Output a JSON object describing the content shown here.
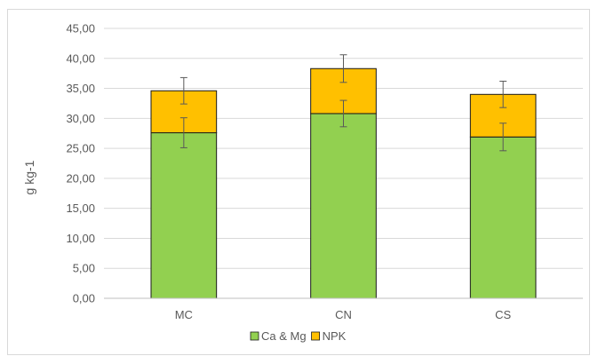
{
  "chart_data": {
    "type": "bar",
    "stacked": true,
    "categories": [
      "MC",
      "CN",
      "CS"
    ],
    "series": [
      {
        "name": "Ca & Mg",
        "values": [
          27.6,
          30.8,
          26.9
        ],
        "error": [
          2.5,
          2.2,
          2.3
        ],
        "color": "#92d050"
      },
      {
        "name": "NPK",
        "values": [
          7.0,
          7.5,
          7.1
        ],
        "error": [
          2.2,
          2.3,
          2.2
        ],
        "color": "#ffc000"
      }
    ],
    "ylabel": "g kg-1",
    "ylim": [
      0,
      45
    ],
    "yticks": [
      "0,00",
      "5,00",
      "10,00",
      "15,00",
      "20,00",
      "25,00",
      "30,00",
      "35,00",
      "40,00",
      "45,00"
    ],
    "grid": true,
    "legend": "bottom"
  }
}
